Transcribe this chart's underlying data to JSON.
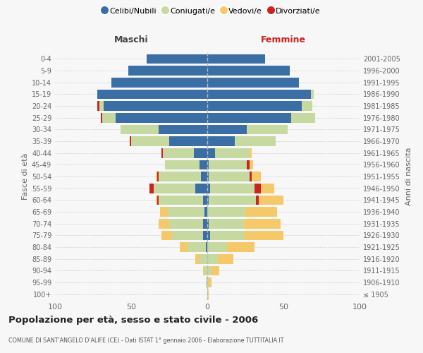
{
  "age_groups": [
    "100+",
    "95-99",
    "90-94",
    "85-89",
    "80-84",
    "75-79",
    "70-74",
    "65-69",
    "60-64",
    "55-59",
    "50-54",
    "45-49",
    "40-44",
    "35-39",
    "30-34",
    "25-29",
    "20-24",
    "15-19",
    "10-14",
    "5-9",
    "0-4"
  ],
  "birth_years": [
    "≤ 1905",
    "1906-1910",
    "1911-1915",
    "1916-1920",
    "1921-1925",
    "1926-1930",
    "1931-1935",
    "1936-1940",
    "1941-1945",
    "1946-1950",
    "1951-1955",
    "1956-1960",
    "1961-1965",
    "1966-1970",
    "1971-1975",
    "1976-1980",
    "1981-1985",
    "1986-1990",
    "1991-1995",
    "1996-2000",
    "2001-2005"
  ],
  "colors": {
    "celibe": "#3a6ea5",
    "coniugato": "#c5d9a0",
    "vedovo": "#f5c96a",
    "divorziato": "#cc2222"
  },
  "males": {
    "celibe": [
      0,
      0,
      0,
      0,
      1,
      3,
      3,
      2,
      3,
      8,
      4,
      5,
      9,
      25,
      32,
      60,
      68,
      72,
      63,
      52,
      40
    ],
    "coniugato": [
      0,
      1,
      2,
      5,
      12,
      20,
      22,
      24,
      29,
      27,
      28,
      23,
      20,
      25,
      25,
      9,
      3,
      0,
      0,
      0,
      0
    ],
    "vedovo": [
      0,
      0,
      1,
      3,
      5,
      7,
      7,
      5,
      1,
      0,
      1,
      0,
      0,
      0,
      0,
      0,
      0,
      0,
      0,
      0,
      0
    ],
    "divorziato": [
      0,
      0,
      0,
      0,
      0,
      0,
      0,
      0,
      1,
      3,
      1,
      0,
      1,
      1,
      0,
      1,
      1,
      0,
      0,
      0,
      0
    ]
  },
  "females": {
    "nubile": [
      0,
      0,
      0,
      0,
      0,
      2,
      1,
      0,
      1,
      2,
      1,
      1,
      5,
      18,
      26,
      55,
      62,
      68,
      60,
      54,
      38
    ],
    "coniugata": [
      0,
      1,
      3,
      7,
      13,
      22,
      23,
      25,
      31,
      29,
      27,
      25,
      23,
      27,
      27,
      16,
      7,
      2,
      0,
      0,
      0
    ],
    "vedova": [
      1,
      2,
      5,
      10,
      18,
      26,
      24,
      21,
      16,
      9,
      6,
      2,
      1,
      0,
      0,
      0,
      0,
      0,
      0,
      0,
      0
    ],
    "divorziata": [
      0,
      0,
      0,
      0,
      0,
      0,
      0,
      0,
      2,
      4,
      1,
      2,
      0,
      0,
      0,
      0,
      0,
      0,
      0,
      0,
      0
    ]
  },
  "xlim": 100,
  "title": "Popolazione per età, sesso e stato civile - 2006",
  "subtitle": "COMUNE DI SANT'ANGELO D'ALIFE (CE) - Dati ISTAT 1° gennaio 2006 - Elaborazione TUTTITALIA.IT",
  "bg_color": "#f7f7f7",
  "grid_color": "#cccccc"
}
